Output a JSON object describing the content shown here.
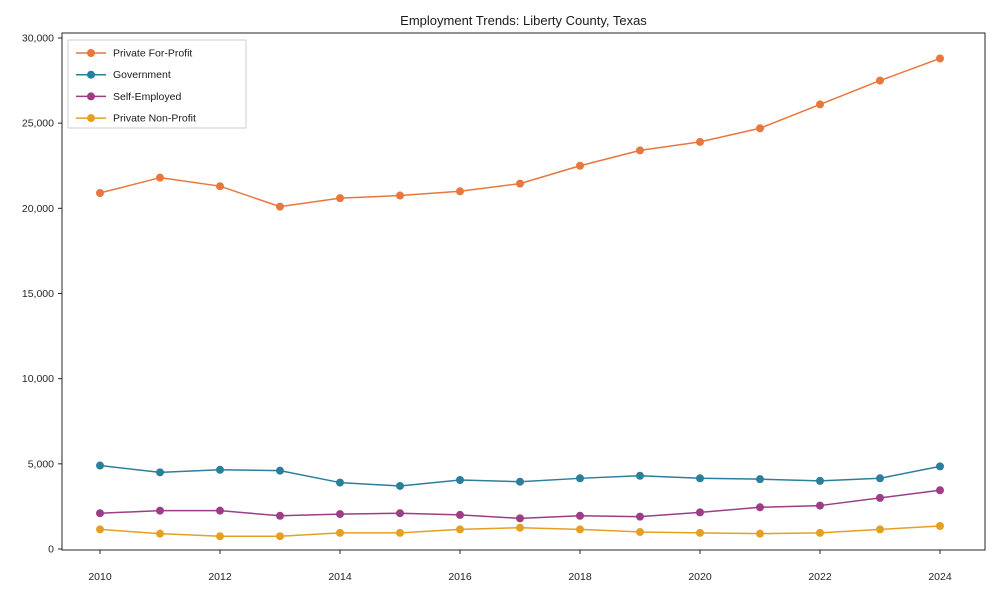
{
  "title": "Employment Trends: Liberty County, Texas",
  "chart_data": {
    "type": "line",
    "title": "Employment Trends: Liberty County, Texas",
    "xlabel": "",
    "ylabel": "",
    "x": [
      2010,
      2011,
      2012,
      2013,
      2014,
      2015,
      2016,
      2017,
      2018,
      2019,
      2020,
      2021,
      2022,
      2023,
      2024
    ],
    "series": [
      {
        "name": "Private For-Profit",
        "color": "#e8773d",
        "values": [
          20900,
          21800,
          21300,
          20100,
          20600,
          20750,
          21000,
          21450,
          22500,
          23400,
          23900,
          24700,
          26100,
          27500,
          28800
        ]
      },
      {
        "name": "Government",
        "color": "#2b7f9b",
        "values": [
          4900,
          4500,
          4650,
          4600,
          3900,
          3700,
          4050,
          3950,
          4150,
          4300,
          4150,
          4100,
          4000,
          4150,
          4850
        ]
      },
      {
        "name": "Self-Employed",
        "color": "#9c3d86",
        "values": [
          2100,
          2250,
          2250,
          1950,
          2050,
          2100,
          2000,
          1800,
          1950,
          1900,
          2150,
          2450,
          2550,
          3000,
          3450
        ]
      },
      {
        "name": "Private Non-Profit",
        "color": "#e5a024",
        "values": [
          1150,
          900,
          750,
          750,
          950,
          950,
          1150,
          1250,
          1150,
          1000,
          950,
          900,
          950,
          1150,
          1350
        ]
      }
    ],
    "xticks": [
      2010,
      2012,
      2014,
      2016,
      2018,
      2020,
      2022,
      2024
    ],
    "yticks": [
      0,
      5000,
      10000,
      15000,
      20000,
      25000,
      30000
    ],
    "ytick_labels": [
      "0",
      "5,000",
      "10,000",
      "15,000",
      "20,000",
      "25,000",
      "30,000"
    ],
    "ylim": [
      0,
      30000
    ],
    "grid": false,
    "legend_position": "upper-left",
    "axis_color": "#262626"
  }
}
